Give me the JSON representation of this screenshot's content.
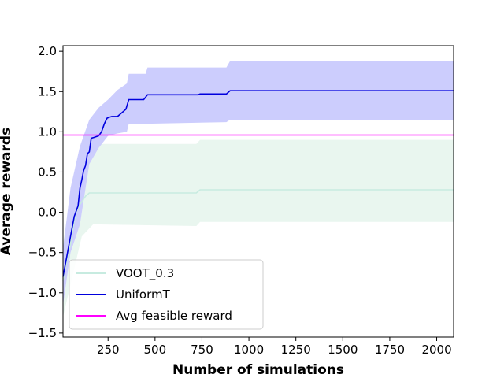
{
  "chart_data": {
    "type": "line",
    "title": "",
    "xlabel": "Number of simulations",
    "ylabel": "Average rewards",
    "xlim": [
      10,
      2090
    ],
    "ylim": [
      -1.55,
      2.07
    ],
    "xticks": [
      250,
      500,
      750,
      1000,
      1250,
      1500,
      1750,
      2000
    ],
    "yticks": [
      -1.5,
      -1.0,
      -0.5,
      0.0,
      0.5,
      1.0,
      1.5,
      2.0
    ],
    "xtick_labels": [
      "250",
      "500",
      "750",
      "1000",
      "1250",
      "1500",
      "1750",
      "2000"
    ],
    "ytick_labels": [
      "−1.5",
      "−1.0",
      "−0.5",
      "0.0",
      "0.5",
      "1.0",
      "1.5",
      "2.0"
    ],
    "grid": false,
    "legend_position": "lower-left",
    "series": [
      {
        "name": "VOOT_0.3",
        "color": "#c7ebe0",
        "band_color": "#e9f6ef",
        "x": [
          10,
          30,
          50,
          60,
          70,
          80,
          90,
          100,
          110,
          130,
          150,
          170,
          720,
          740,
          2090
        ],
        "y": [
          -0.85,
          -0.6,
          -0.4,
          -0.25,
          -0.1,
          0.0,
          0.05,
          0.1,
          0.13,
          0.2,
          0.24,
          0.24,
          0.24,
          0.28,
          0.28
        ],
        "band_x": [
          10,
          60,
          110,
          170,
          720,
          740,
          2090
        ],
        "band_upper": [
          -0.4,
          0.4,
          0.75,
          0.85,
          0.85,
          0.9,
          0.9
        ],
        "band_lower": [
          -1.3,
          -0.8,
          -0.3,
          -0.15,
          -0.17,
          -0.12,
          -0.12
        ]
      },
      {
        "name": "UniformT",
        "color": "#0000dd",
        "band_color": "#cccdfd",
        "x": [
          10,
          30,
          50,
          70,
          90,
          100,
          110,
          120,
          130,
          140,
          150,
          160,
          175,
          200,
          215,
          230,
          245,
          255,
          270,
          300,
          330,
          345,
          360,
          440,
          460,
          730,
          740,
          880,
          900,
          2090
        ],
        "y": [
          -0.8,
          -0.55,
          -0.3,
          -0.05,
          0.08,
          0.3,
          0.4,
          0.52,
          0.58,
          0.73,
          0.75,
          0.92,
          0.93,
          0.95,
          1.0,
          1.1,
          1.17,
          1.18,
          1.19,
          1.19,
          1.25,
          1.28,
          1.4,
          1.4,
          1.46,
          1.46,
          1.47,
          1.47,
          1.51,
          1.51
        ],
        "band_x": [
          10,
          50,
          100,
          150,
          200,
          250,
          300,
          350,
          360,
          450,
          460,
          880,
          900,
          2090
        ],
        "band_upper": [
          -0.45,
          0.3,
          0.82,
          1.15,
          1.3,
          1.4,
          1.52,
          1.6,
          1.72,
          1.72,
          1.8,
          1.8,
          1.88,
          1.88
        ],
        "band_lower": [
          -1.15,
          -0.5,
          -0.15,
          0.6,
          0.8,
          0.95,
          0.98,
          1.0,
          1.1,
          1.1,
          1.1,
          1.12,
          1.15,
          1.15
        ]
      },
      {
        "name": "Avg feasible reward",
        "color": "#ff00ff",
        "x": [
          10,
          2090
        ],
        "y": [
          0.96,
          0.96
        ]
      }
    ]
  }
}
